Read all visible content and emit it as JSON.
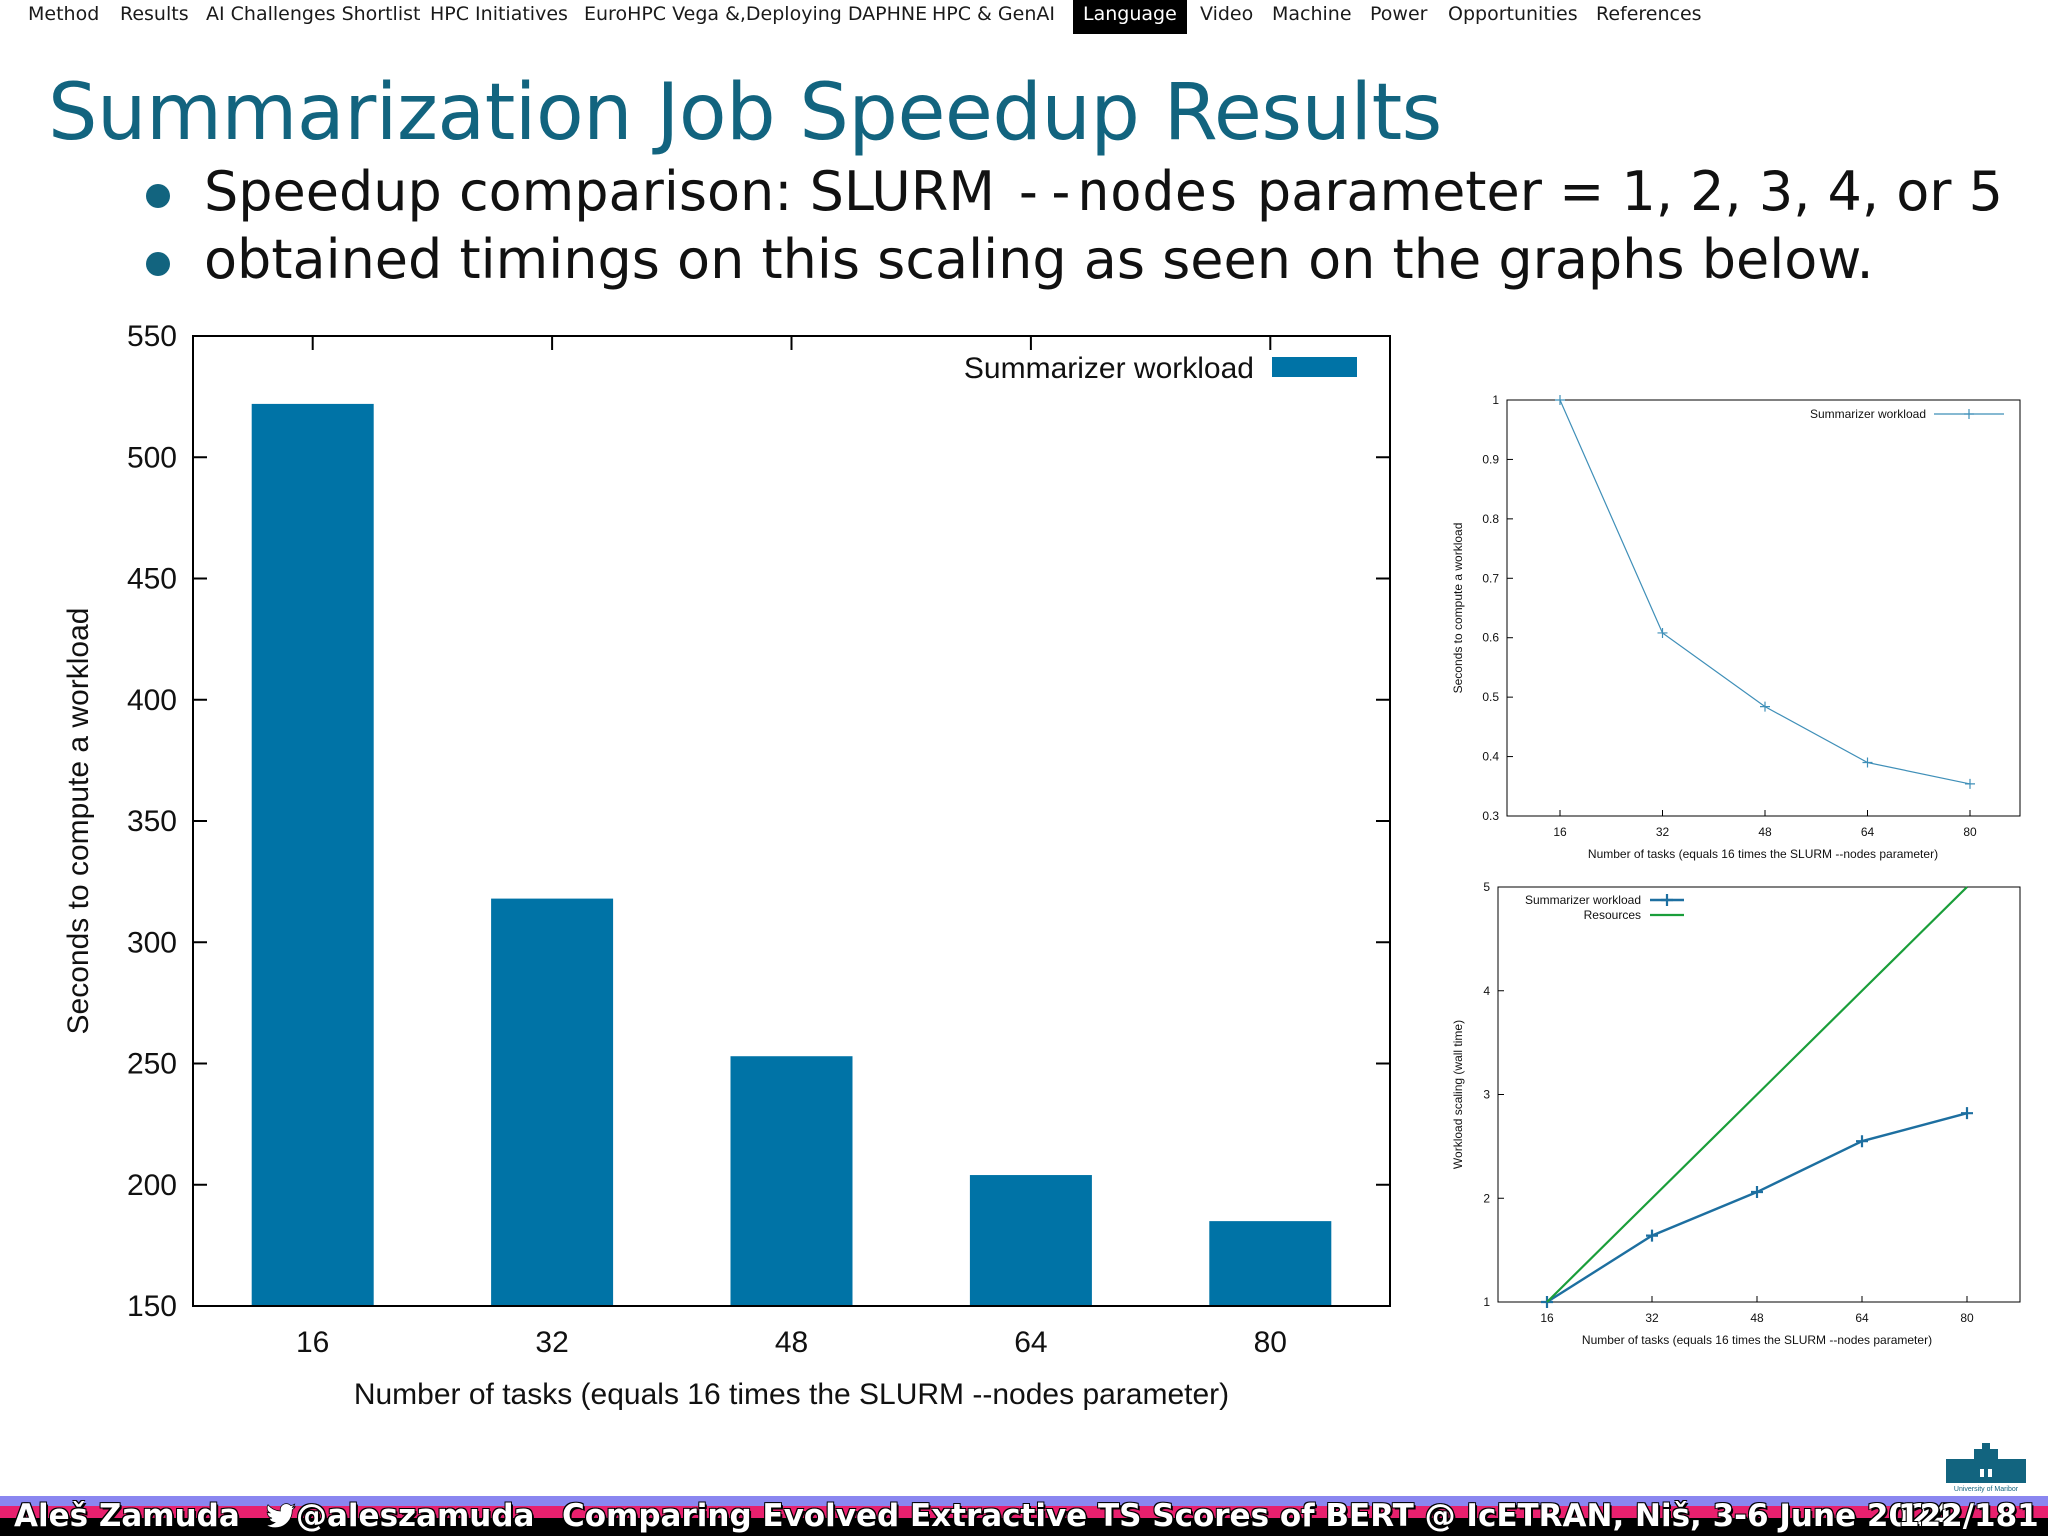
{
  "nav": {
    "items": [
      "Method",
      "Results",
      "AI Challenges Shortlist",
      "HPC Initiatives",
      "EuroHPC Vega &,Deploying DAPHNE",
      "HPC & GenAI",
      "Language",
      "Video",
      "Machine",
      "Power",
      "Opportunities",
      "References"
    ],
    "active": "Language"
  },
  "slide": {
    "title": "Summarization Job Speedup Results",
    "bullet1_pre": "Speedup comparison: SLURM ",
    "bullet1_code": "--nodes",
    "bullet1_post": " parameter = 1, 2, 3, 4, or 5",
    "bullet2": "obtained timings on this scaling as seen on the graphs below."
  },
  "colors": {
    "accent": "#12647f",
    "bar": "#0073a6",
    "resources": "#1a9e3a"
  },
  "chart_data": [
    {
      "type": "bar",
      "categories": [
        "16",
        "32",
        "48",
        "64",
        "80"
      ],
      "values": [
        522,
        318,
        253,
        204,
        185
      ],
      "series_name": "Summarizer workload",
      "xlabel": "Number of tasks (equals 16 times the SLURM --nodes parameter)",
      "ylabel": "Seconds to compute a workload",
      "ylim": [
        150,
        550
      ],
      "yticks": [
        "150",
        "200",
        "250",
        "300",
        "350",
        "400",
        "450",
        "500",
        "550"
      ],
      "legend": "top-right",
      "grid": false
    },
    {
      "type": "line",
      "x": [
        16,
        32,
        48,
        64,
        80
      ],
      "xticks": [
        "16",
        "32",
        "48",
        "64",
        "80"
      ],
      "values": [
        1.0,
        0.608,
        0.484,
        0.39,
        0.354
      ],
      "series_name": "Summarizer workload",
      "xlabel": "Number of tasks (equals 16 times the SLURM --nodes parameter)",
      "ylabel": "Seconds to compute a workload",
      "ylim": [
        0.3,
        1
      ],
      "yticks": [
        "0.3",
        "0.4",
        "0.5",
        "0.6",
        "0.7",
        "0.8",
        "0.9",
        "1"
      ],
      "legend": "top-right",
      "grid": false
    },
    {
      "type": "line",
      "x": [
        16,
        32,
        48,
        64,
        80
      ],
      "xticks": [
        "16",
        "32",
        "48",
        "64",
        "80"
      ],
      "series": [
        {
          "name": "Summarizer workload",
          "values": [
            1.0,
            1.64,
            2.06,
            2.55,
            2.82
          ]
        },
        {
          "name": "Resources",
          "values": [
            1,
            2,
            3,
            4,
            5
          ]
        }
      ],
      "xlabel": "Number of tasks (equals 16 times the SLURM --nodes parameter)",
      "ylabel": "Workload scaling (wall time)",
      "ylim": [
        1,
        5
      ],
      "yticks": [
        "1",
        "2",
        "3",
        "4",
        "5"
      ],
      "legend": "top-left",
      "grid": false
    }
  ],
  "footer": {
    "author": "Aleš Zamuda",
    "twitter": "@aleszamuda",
    "talk": "Comparing Evolved Extractive TS Scores of BERT @ IcETRAN, Niš, 3-6 June 2024",
    "page": "122/181",
    "logo_text": "University of Maribor"
  }
}
